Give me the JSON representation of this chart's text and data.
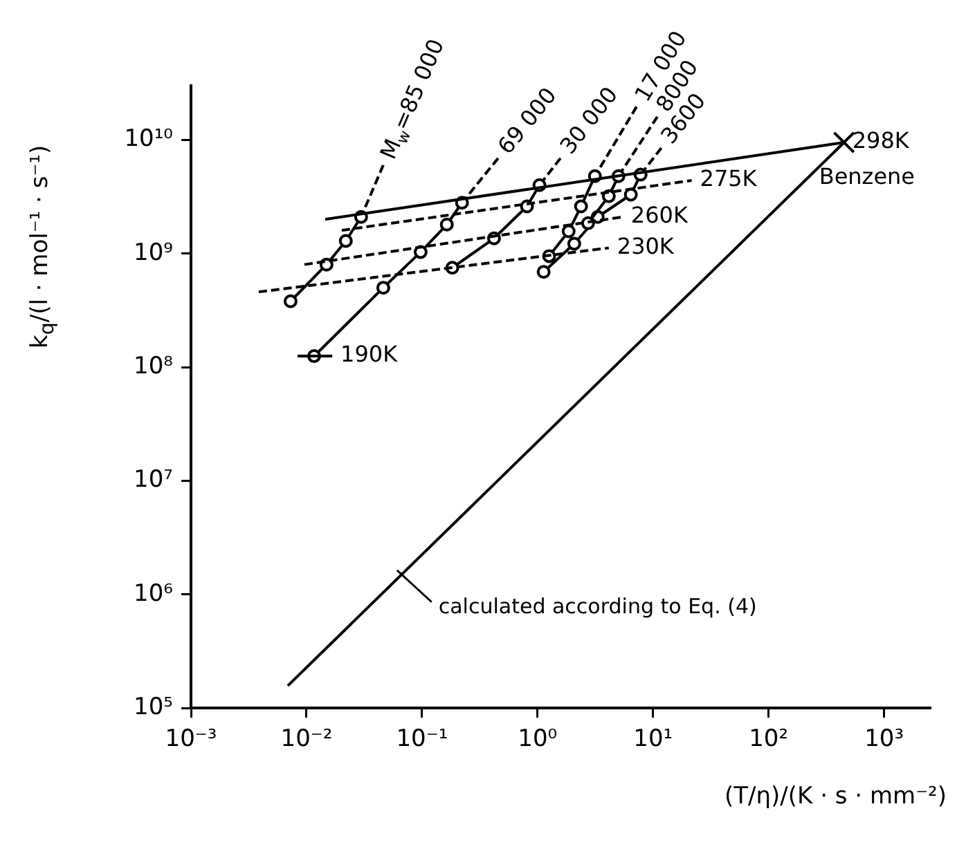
{
  "chart_data": {
    "type": "line",
    "log": "xy",
    "grid": false,
    "legend": false,
    "xlabel": "(T/η)/(K · s · mm⁻²)",
    "ylabel": "k$_{q}$/(l · mol⁻¹ · s⁻¹)",
    "xlim": [
      0.001,
      2500
    ],
    "ylim": [
      100000,
      30000000000
    ],
    "xticks": [
      {
        "value": 0.001,
        "label": "10⁻³"
      },
      {
        "value": 0.01,
        "label": "10⁻²"
      },
      {
        "value": 0.1,
        "label": "10⁻¹"
      },
      {
        "value": 1,
        "label": "10⁰"
      },
      {
        "value": 10,
        "label": "10¹"
      },
      {
        "value": 100,
        "label": "10²"
      },
      {
        "value": 1000,
        "label": "10³"
      }
    ],
    "yticks": [
      {
        "value": 100000,
        "label": "10⁵"
      },
      {
        "value": 1000000,
        "label": "10⁶"
      },
      {
        "value": 10000000,
        "label": "10⁷"
      },
      {
        "value": 100000000,
        "label": "10⁸"
      },
      {
        "value": 1000000000,
        "label": "10⁹"
      },
      {
        "value": 10000000000,
        "label": "10¹⁰"
      }
    ],
    "series": [
      {
        "color": "#000000",
        "marker": "none",
        "line_style": "solid",
        "x": [
          0.00689,
          450
        ],
        "values": [
          157000,
          9500000000
        ]
      },
      {
        "name": "298K",
        "color": "#000000",
        "marker": "none",
        "line_style": "solid",
        "x": [
          0.0145,
          450
        ],
        "values": [
          2000000000,
          9500000000
        ]
      },
      {
        "name": "275K",
        "color": "#000000",
        "marker": "none",
        "line_style": "dashed",
        "x": [
          0.0202,
          21.6
        ],
        "values": [
          1600000000,
          4400000000
        ]
      },
      {
        "name": "260K",
        "color": "#000000",
        "marker": "none",
        "line_style": "dashed",
        "x": [
          0.0096,
          5.46
        ],
        "values": [
          800000000,
          2100000000
        ]
      },
      {
        "name": "230K",
        "color": "#000000",
        "marker": "none",
        "line_style": "dashed",
        "x": [
          0.00386,
          4.14
        ],
        "values": [
          460000000,
          1120000000
        ]
      },
      {
        "name": "190K",
        "color": "#000000",
        "marker": "none",
        "line_style": "solid",
        "x": [
          0.00836,
          0.0167
        ],
        "values": [
          125000000,
          125000000
        ]
      },
      {
        "color": "#000000",
        "marker": "circle",
        "line_style": "solid",
        "x": [
          0.00728,
          0.0149,
          0.0219,
          0.0297
        ],
        "values": [
          380000000,
          800000000,
          1290000000,
          2100000000
        ]
      },
      {
        "name": "M$_{w}$=85 000",
        "color": "#000000",
        "marker": "none",
        "line_style": "dashed",
        "x": [
          0.0462,
          0.0297
        ],
        "values": [
          6000000000,
          2100000000
        ]
      },
      {
        "color": "#000000",
        "marker": "circle",
        "line_style": "solid",
        "x": [
          0.01164,
          0.0462,
          0.0973,
          0.164,
          0.222
        ],
        "values": [
          125000000,
          500000000,
          1030000000,
          1800000000,
          2800000000
        ]
      },
      {
        "name": "69 000",
        "color": "#000000",
        "marker": "none",
        "line_style": "dashed",
        "x": [
          0.456,
          0.222
        ],
        "values": [
          6900000000,
          2800000000
        ]
      },
      {
        "color": "#000000",
        "marker": "circle",
        "line_style": "solid",
        "x": [
          0.183,
          0.42,
          0.81,
          1.04
        ],
        "values": [
          750000000,
          1360000000,
          2600000000,
          4000000000
        ]
      },
      {
        "name": "30 000",
        "color": "#000000",
        "marker": "none",
        "line_style": "dashed",
        "x": [
          1.58,
          1.04
        ],
        "values": [
          6900000000,
          4000000000
        ]
      },
      {
        "color": "#000000",
        "marker": "circle",
        "line_style": "solid",
        "x": [
          1.26,
          1.86,
          2.38,
          3.14
        ],
        "values": [
          950000000,
          1570000000,
          2600000000,
          4800000000
        ]
      },
      {
        "name": "17 000",
        "color": "#000000",
        "marker": "none",
        "line_style": "dashed",
        "x": [
          7.2,
          3.14
        ],
        "values": [
          19600000000,
          4800000000
        ]
      },
      {
        "color": "#000000",
        "marker": "circle",
        "line_style": "solid",
        "x": [
          2.74,
          4.14,
          5.02
        ],
        "values": [
          1850000000,
          3200000000,
          4800000000
        ]
      },
      {
        "name": "8000",
        "color": "#000000",
        "marker": "none",
        "line_style": "dashed",
        "x": [
          10.9,
          5.02
        ],
        "values": [
          16000000000,
          4800000000
        ]
      },
      {
        "color": "#000000",
        "marker": "circle",
        "line_style": "solid",
        "x": [
          1.13,
          2.08,
          3.32,
          6.43,
          7.8
        ],
        "values": [
          690000000,
          1220000000,
          2100000000,
          3300000000,
          4950000000
        ]
      },
      {
        "name": "3600",
        "color": "#000000",
        "marker": "none",
        "line_style": "dashed",
        "x": [
          11.8,
          7.8
        ],
        "values": [
          8500000000,
          4950000000
        ]
      },
      {
        "name": "Benzene",
        "type": "scatter",
        "color": "#000000",
        "marker": "cross",
        "x": [
          450
        ],
        "values": [
          9500000000
        ]
      }
    ],
    "annotations": [
      {
        "text": "calculated according to Eq. (4)",
        "x": 0.066,
        "y": 1500000
      }
    ]
  }
}
